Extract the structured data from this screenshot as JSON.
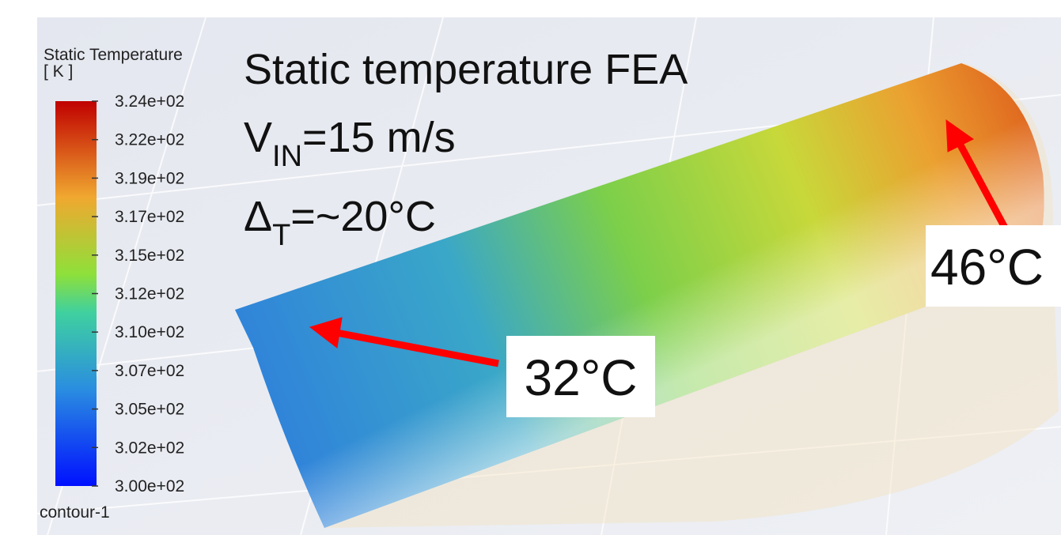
{
  "legend": {
    "title": "Static Temperature",
    "unit": "[ K ]",
    "ticks": [
      "3.24e+02",
      "3.22e+02",
      "3.19e+02",
      "3.17e+02",
      "3.15e+02",
      "3.12e+02",
      "3.10e+02",
      "3.07e+02",
      "3.05e+02",
      "3.02e+02",
      "3.00e+02"
    ],
    "name": "contour-1"
  },
  "annotations": {
    "title": "Static temperature FEA",
    "velocity": {
      "symbol": "V",
      "subscript": "IN",
      "rest": "=15 m/s"
    },
    "delta": {
      "symbol": "Δ",
      "subscript": "T",
      "rest": "=~20°C"
    },
    "cold_label": "32°C",
    "hot_label": "46°C"
  }
}
